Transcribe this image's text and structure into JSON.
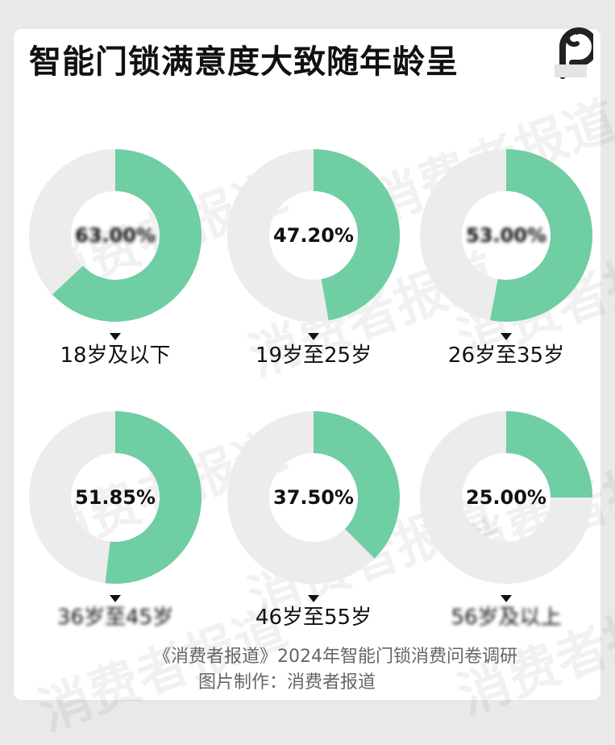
{
  "title": "智能门锁满意度大致随年龄呈",
  "watermark": "消费者报道",
  "colors": {
    "satisfied": "#6fcea3",
    "remaining": "#ececec",
    "background": "#e9e9e9"
  },
  "chart_data": {
    "type": "pie",
    "variant": "donut",
    "title": "智能门锁满意度大致随年龄呈",
    "categories": [
      "18岁及以下",
      "19岁至25岁",
      "26岁至35岁",
      "36岁至45岁",
      "46岁至55岁",
      "56岁及以上"
    ],
    "values": [
      63.0,
      47.2,
      53.0,
      51.85,
      37.5,
      25.0
    ],
    "value_labels": [
      "63.00%",
      "47.20%",
      "53.00%",
      "51.85%",
      "37.50%",
      "25.00%"
    ],
    "label_blurred": [
      true,
      false,
      true,
      false,
      false,
      false
    ],
    "category_blurred": [
      false,
      false,
      false,
      true,
      false,
      true
    ],
    "arrow_shown": [
      true,
      true,
      true,
      true,
      true,
      true
    ],
    "unit": "%"
  },
  "footer": {
    "source": "《消费者报道》2024年智能门锁消费问卷调研",
    "credit": "图片制作：消费者报道"
  },
  "logo": {
    "icon": "brand-logo-icon"
  }
}
